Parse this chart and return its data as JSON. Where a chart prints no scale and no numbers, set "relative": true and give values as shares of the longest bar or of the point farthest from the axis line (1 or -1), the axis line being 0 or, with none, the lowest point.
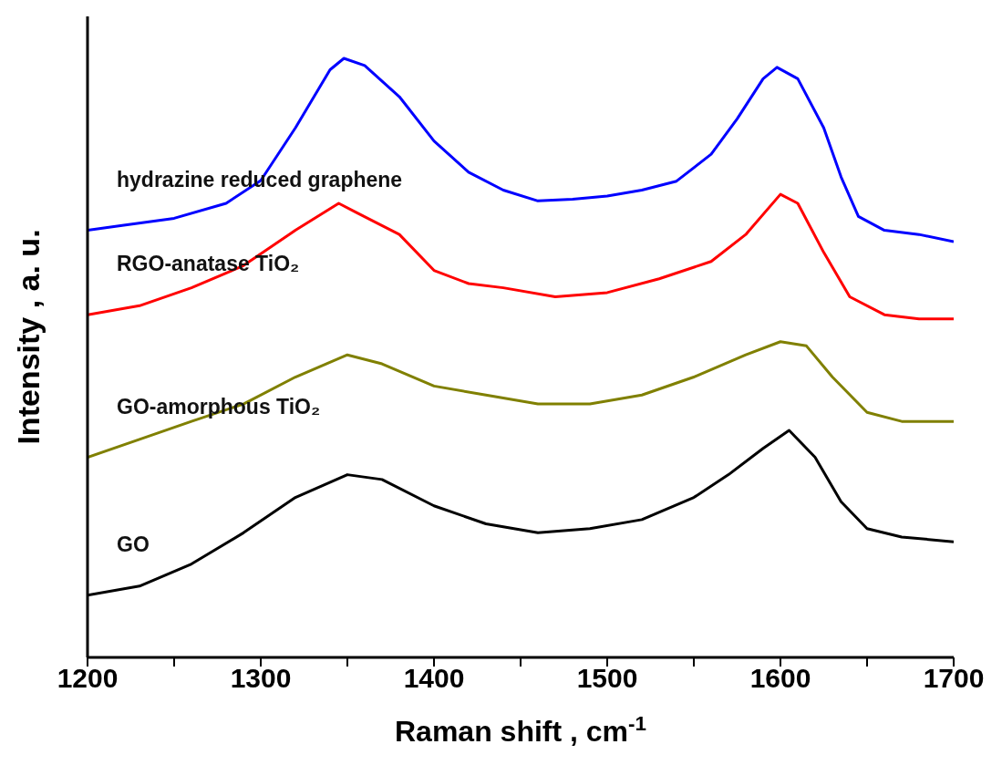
{
  "chart_data": {
    "type": "line",
    "relative": true,
    "xlabel": "Raman shift , cm$^{-1}$",
    "ylabel": "Intensity , a. u.",
    "xlim": [
      1200,
      1700
    ],
    "xticks": [
      1200,
      {
        "value": 1250,
        "label": null
      },
      1300,
      {
        "value": 1350,
        "label": null
      },
      1400,
      {
        "value": 1450,
        "label": null
      },
      1500,
      {
        "value": 1550,
        "label": null
      },
      1600,
      {
        "value": 1650,
        "label": null
      },
      1700
    ],
    "grid": false,
    "legend": false,
    "marker": "none",
    "line_style": "solid",
    "series": [
      {
        "name": "hydrazine reduced graphene",
        "color": "#0000ff",
        "x": [
          1200,
          1220,
          1250,
          1280,
          1300,
          1320,
          1340,
          1348,
          1360,
          1380,
          1400,
          1420,
          1440,
          1460,
          1480,
          1500,
          1520,
          1540,
          1560,
          1575,
          1590,
          1598,
          1610,
          1625,
          1635,
          1645,
          1660,
          1680,
          1700
        ],
        "values": [
          0.713,
          0.721,
          0.733,
          0.758,
          0.796,
          0.884,
          0.981,
          1.0,
          0.988,
          0.936,
          0.862,
          0.81,
          0.78,
          0.762,
          0.765,
          0.77,
          0.78,
          0.795,
          0.84,
          0.899,
          0.966,
          0.985,
          0.966,
          0.884,
          0.802,
          0.736,
          0.713,
          0.706,
          0.694
        ]
      },
      {
        "name": "RGO-anatase TiO₂",
        "color": "#ff0000",
        "x": [
          1200,
          1230,
          1260,
          1290,
          1320,
          1345,
          1355,
          1380,
          1400,
          1420,
          1440,
          1470,
          1500,
          1530,
          1560,
          1580,
          1600,
          1610,
          1625,
          1640,
          1660,
          1680,
          1700
        ],
        "values": [
          0.572,
          0.587,
          0.617,
          0.654,
          0.713,
          0.758,
          0.743,
          0.706,
          0.646,
          0.624,
          0.617,
          0.602,
          0.609,
          0.632,
          0.661,
          0.706,
          0.773,
          0.758,
          0.676,
          0.602,
          0.572,
          0.565,
          0.565
        ]
      },
      {
        "name": "GO-amorphous TiO₂",
        "color": "#808000",
        "x": [
          1200,
          1230,
          1260,
          1290,
          1320,
          1350,
          1370,
          1400,
          1430,
          1460,
          1490,
          1520,
          1550,
          1580,
          1600,
          1615,
          1630,
          1650,
          1670,
          1700
        ],
        "values": [
          0.334,
          0.364,
          0.394,
          0.423,
          0.468,
          0.505,
          0.49,
          0.453,
          0.438,
          0.423,
          0.423,
          0.438,
          0.468,
          0.505,
          0.527,
          0.52,
          0.468,
          0.409,
          0.394,
          0.394
        ]
      },
      {
        "name": "GO",
        "color": "#000000",
        "x": [
          1200,
          1230,
          1260,
          1290,
          1320,
          1350,
          1370,
          1400,
          1430,
          1460,
          1490,
          1520,
          1550,
          1570,
          1590,
          1605,
          1620,
          1635,
          1650,
          1670,
          1700
        ],
        "values": [
          0.104,
          0.119,
          0.156,
          0.208,
          0.267,
          0.305,
          0.297,
          0.253,
          0.223,
          0.208,
          0.215,
          0.23,
          0.267,
          0.305,
          0.349,
          0.379,
          0.334,
          0.26,
          0.215,
          0.201,
          0.193
        ]
      }
    ]
  }
}
